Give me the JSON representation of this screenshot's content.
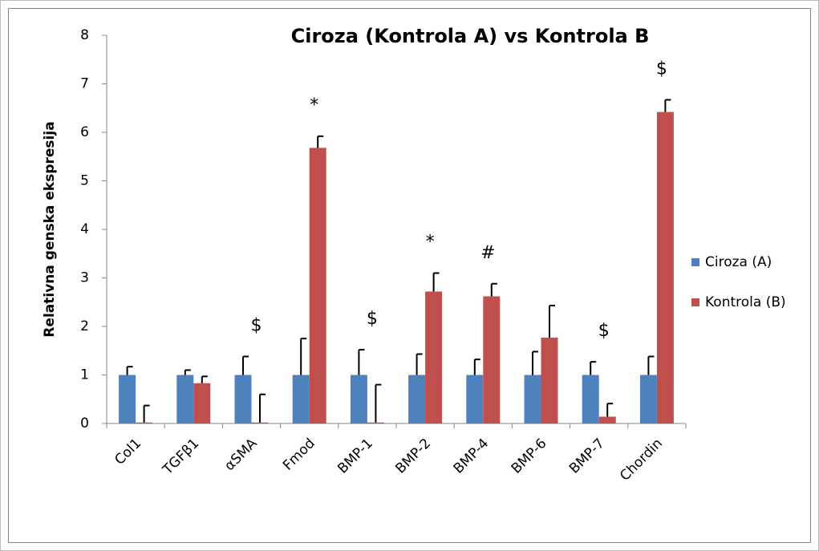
{
  "chart_data": {
    "type": "bar",
    "title": "Ciroza (Kontrola A) vs Kontrola B",
    "y_label": "Relativna genska ekspresija",
    "categories": [
      "Col1",
      "TGFβ1",
      "αSMA",
      "Fmod",
      "BMP-1",
      "BMP-2",
      "BMP-4",
      "BMP-6",
      "BMP-7",
      "Chordin"
    ],
    "series": [
      {
        "name": "Ciroza (A)",
        "color": "#4f81bd",
        "values": [
          1,
          1,
          1,
          1,
          1,
          1,
          1,
          1,
          1,
          1
        ],
        "errors": [
          0.17,
          0.1,
          0.38,
          0.75,
          0.52,
          0.43,
          0.32,
          0.48,
          0.27,
          0.38
        ]
      },
      {
        "name": "Kontrola (B)",
        "color": "#c0504d",
        "values": [
          0.02,
          0.83,
          0.02,
          5.68,
          0.02,
          2.72,
          2.62,
          1.77,
          0.14,
          6.42
        ],
        "errors": [
          0.35,
          0.14,
          0.58,
          0.24,
          0.78,
          0.38,
          0.26,
          0.66,
          0.27,
          0.25
        ]
      }
    ],
    "annotations": [
      null,
      null,
      "$",
      "*",
      "$",
      "*",
      "#",
      null,
      "$",
      "$"
    ],
    "ylim": [
      0,
      8
    ],
    "yticks": [
      0,
      1,
      2,
      3,
      4,
      5,
      6,
      7,
      8
    ],
    "legend": "right"
  }
}
